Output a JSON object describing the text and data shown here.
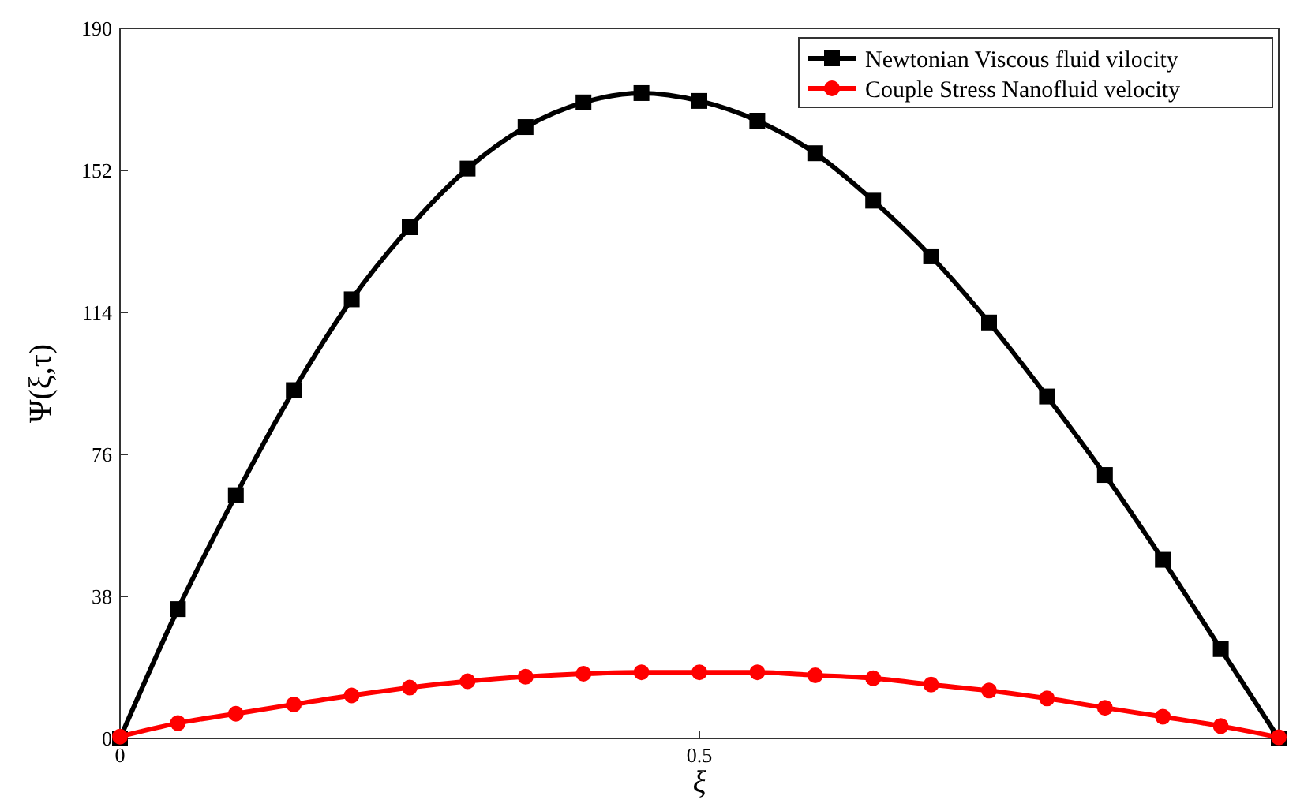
{
  "chart_data": {
    "type": "line",
    "xlabel": "ξ",
    "ylabel": "Ψ(ξ,τ)",
    "x": [
      0,
      0.05,
      0.1,
      0.15,
      0.2,
      0.25,
      0.3,
      0.35,
      0.4,
      0.45,
      0.5,
      0.55,
      0.6,
      0.65,
      0.7,
      0.75,
      0.8,
      0.85,
      0.9,
      0.95,
      1
    ],
    "series": [
      {
        "name": "Newtonian Viscous fluid vilocity",
        "color": "#000000",
        "marker": "square",
        "values": [
          0,
          34.6,
          65.1,
          93.2,
          117.5,
          136.8,
          152.5,
          163.6,
          170.2,
          172.7,
          170.6,
          165.3,
          156.6,
          143.9,
          129,
          111.3,
          91.5,
          70.5,
          47.8,
          23.9,
          0
        ]
      },
      {
        "name": "Couple Stress Nanofluid velocity",
        "color": "#ff0000",
        "marker": "circle",
        "values": [
          0.5,
          4.1,
          6.6,
          9.1,
          11.5,
          13.6,
          15.3,
          16.5,
          17.3,
          17.7,
          17.7,
          17.7,
          16.9,
          16.1,
          14.4,
          12.8,
          10.7,
          8.2,
          5.8,
          3.3,
          0.3
        ]
      }
    ],
    "xlim": [
      0,
      1
    ],
    "xticks": [
      0,
      0.5
    ],
    "ylim": [
      0,
      190
    ],
    "yticks": [
      0,
      38,
      76,
      114,
      152,
      190
    ],
    "grid": false,
    "legend": "top right",
    "line_style": "solid"
  }
}
